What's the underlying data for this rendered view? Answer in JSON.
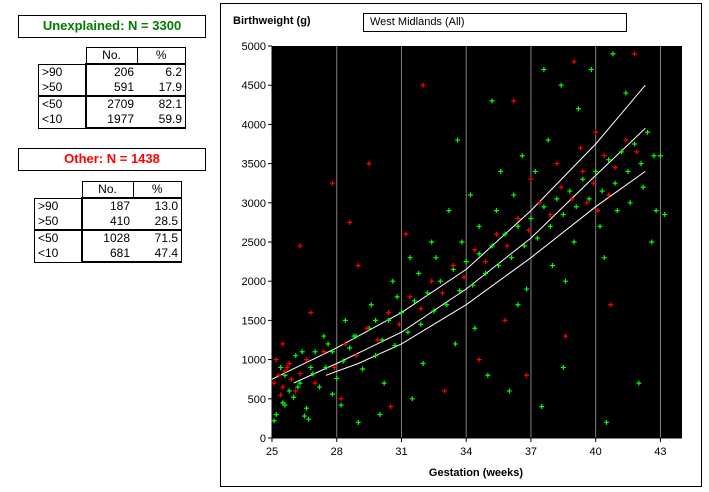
{
  "unexplained": {
    "title": "Unexplained: N = 3300",
    "color": "#007a00",
    "headers": [
      "No.",
      "%"
    ],
    "rows": [
      {
        "label": ">90",
        "no": "206",
        "pct": "6.2"
      },
      {
        "label": ">50",
        "no": "591",
        "pct": "17.9"
      },
      {
        "label": "<50",
        "no": "2709",
        "pct": "82.1"
      },
      {
        "label": "<10",
        "no": "1977",
        "pct": "59.9"
      }
    ]
  },
  "other": {
    "title": "Other: N = 1438",
    "color": "#ff0000",
    "headers": [
      "No.",
      "%"
    ],
    "rows": [
      {
        "label": ">90",
        "no": "187",
        "pct": "13.0"
      },
      {
        "label": ">50",
        "no": "410",
        "pct": "28.5"
      },
      {
        "label": "<50",
        "no": "1028",
        "pct": "71.5"
      },
      {
        "label": "<10",
        "no": "681",
        "pct": "47.4"
      }
    ]
  },
  "region_selector": {
    "value": "West Midlands (All)"
  },
  "chart_data": {
    "type": "scatter",
    "ylabel": "Birthweight (g)",
    "xlabel": "Gestation (weeks)",
    "xlim": [
      25,
      44
    ],
    "ylim": [
      0,
      5000
    ],
    "x_ticks": [
      25,
      28,
      31,
      34,
      37,
      40,
      43
    ],
    "y_ticks": [
      0,
      500,
      1000,
      1500,
      2000,
      2500,
      3000,
      3500,
      4000,
      4500,
      5000
    ],
    "grid": "vertical",
    "background": "#000000",
    "series": [
      {
        "name": "Unexplained",
        "color": "#00ff00",
        "marker": "+",
        "points": [
          [
            25.2,
            300
          ],
          [
            25.5,
            450
          ],
          [
            25.8,
            600
          ],
          [
            26.0,
            520
          ],
          [
            26.3,
            700
          ],
          [
            26.6,
            380
          ],
          [
            26.9,
            820
          ],
          [
            27.2,
            650
          ],
          [
            27.5,
            900
          ],
          [
            27.8,
            560
          ],
          [
            25.4,
            900
          ],
          [
            26.1,
            1050
          ],
          [
            26.7,
            240
          ],
          [
            27.0,
            1100
          ],
          [
            27.6,
            1200
          ],
          [
            28.0,
            760
          ],
          [
            28.3,
            980
          ],
          [
            28.6,
            1150
          ],
          [
            28.9,
            1300
          ],
          [
            29.2,
            880
          ],
          [
            29.5,
            1400
          ],
          [
            29.8,
            1050
          ],
          [
            30.1,
            1250
          ],
          [
            30.4,
            1500
          ],
          [
            30.7,
            1180
          ],
          [
            31.0,
            1600
          ],
          [
            31.3,
            1350
          ],
          [
            31.6,
            1750
          ],
          [
            31.9,
            1450
          ],
          [
            32.2,
            1850
          ],
          [
            32.5,
            1620
          ],
          [
            32.8,
            2000
          ],
          [
            33.1,
            1700
          ],
          [
            33.4,
            2150
          ],
          [
            33.7,
            1880
          ],
          [
            34.0,
            2250
          ],
          [
            34.3,
            1950
          ],
          [
            34.6,
            2350
          ],
          [
            34.9,
            2100
          ],
          [
            35.2,
            2450
          ],
          [
            35.5,
            2200
          ],
          [
            35.8,
            2600
          ],
          [
            36.1,
            2300
          ],
          [
            36.4,
            2700
          ],
          [
            36.7,
            2450
          ],
          [
            37.0,
            2800
          ],
          [
            37.3,
            2550
          ],
          [
            37.6,
            2950
          ],
          [
            37.9,
            2700
          ],
          [
            38.2,
            3050
          ],
          [
            38.5,
            2850
          ],
          [
            38.8,
            3150
          ],
          [
            39.1,
            2950
          ],
          [
            39.4,
            3300
          ],
          [
            39.7,
            3050
          ],
          [
            40.0,
            3400
          ],
          [
            40.3,
            3150
          ],
          [
            40.6,
            3550
          ],
          [
            40.9,
            3250
          ],
          [
            41.2,
            3650
          ],
          [
            41.5,
            3400
          ],
          [
            41.8,
            3750
          ],
          [
            42.1,
            3500
          ],
          [
            42.4,
            3900
          ],
          [
            42.7,
            3600
          ],
          [
            39.2,
            4200
          ],
          [
            38.4,
            4500
          ],
          [
            37.8,
            3800
          ],
          [
            36.6,
            3600
          ],
          [
            35.6,
            3400
          ],
          [
            34.2,
            3100
          ],
          [
            33.2,
            2900
          ],
          [
            32.4,
            2500
          ],
          [
            31.4,
            2300
          ],
          [
            30.6,
            2000
          ],
          [
            29.6,
            1700
          ],
          [
            28.4,
            1500
          ],
          [
            27.4,
            1300
          ],
          [
            26.4,
            1100
          ],
          [
            25.6,
            800
          ],
          [
            35.0,
            800
          ],
          [
            36.0,
            600
          ],
          [
            37.5,
            400
          ],
          [
            38.5,
            900
          ],
          [
            40.5,
            200
          ],
          [
            42.0,
            700
          ],
          [
            31.5,
            500
          ],
          [
            30.0,
            300
          ],
          [
            29.0,
            200
          ],
          [
            33.5,
            1200
          ],
          [
            36.8,
            1900
          ],
          [
            38.0,
            2200
          ],
          [
            39.0,
            2500
          ],
          [
            40.2,
            2700
          ],
          [
            41.0,
            2900
          ],
          [
            41.6,
            3000
          ],
          [
            42.2,
            3200
          ],
          [
            42.8,
            2900
          ],
          [
            39.8,
            4700
          ],
          [
            41.4,
            4400
          ],
          [
            37.2,
            3400
          ],
          [
            36.2,
            3100
          ],
          [
            35.4,
            2900
          ],
          [
            34.6,
            2700
          ],
          [
            33.8,
            2500
          ],
          [
            32.6,
            2300
          ],
          [
            31.8,
            2100
          ],
          [
            30.8,
            1800
          ],
          [
            29.8,
            1500
          ],
          [
            28.8,
            1300
          ],
          [
            27.8,
            1100
          ],
          [
            26.8,
            900
          ],
          [
            26.2,
            650
          ],
          [
            25.6,
            420
          ],
          [
            25.1,
            220
          ],
          [
            26.5,
            280
          ],
          [
            28.2,
            420
          ],
          [
            30.2,
            700
          ],
          [
            32.0,
            950
          ],
          [
            34.4,
            1400
          ],
          [
            36.4,
            1700
          ],
          [
            38.6,
            2000
          ],
          [
            40.4,
            2300
          ],
          [
            42.6,
            2500
          ],
          [
            43.2,
            2850
          ],
          [
            43.0,
            3600
          ],
          [
            40.8,
            4900
          ],
          [
            37.6,
            4700
          ],
          [
            35.2,
            4300
          ],
          [
            33.6,
            3800
          ]
        ]
      },
      {
        "name": "Other",
        "color": "#ff0000",
        "marker": "+",
        "points": [
          [
            25.1,
            700
          ],
          [
            25.3,
            800
          ],
          [
            25.5,
            650
          ],
          [
            25.7,
            900
          ],
          [
            25.9,
            750
          ],
          [
            26.1,
            600
          ],
          [
            25.2,
            1000
          ],
          [
            25.4,
            550
          ],
          [
            25.6,
            850
          ],
          [
            25.8,
            950
          ],
          [
            26.3,
            820
          ],
          [
            26.6,
            1000
          ],
          [
            27.0,
            700
          ],
          [
            27.4,
            1100
          ],
          [
            27.9,
            900
          ],
          [
            28.4,
            1200
          ],
          [
            28.9,
            1050
          ],
          [
            29.4,
            1400
          ],
          [
            29.9,
            1250
          ],
          [
            30.4,
            1600
          ],
          [
            30.9,
            1450
          ],
          [
            31.4,
            1800
          ],
          [
            31.9,
            1650
          ],
          [
            32.4,
            2000
          ],
          [
            32.9,
            1850
          ],
          [
            33.4,
            2200
          ],
          [
            33.9,
            2050
          ],
          [
            34.4,
            2400
          ],
          [
            34.9,
            2250
          ],
          [
            35.4,
            2600
          ],
          [
            35.9,
            2450
          ],
          [
            36.4,
            2800
          ],
          [
            36.9,
            2650
          ],
          [
            37.4,
            3000
          ],
          [
            37.9,
            2850
          ],
          [
            38.4,
            3200
          ],
          [
            38.9,
            3050
          ],
          [
            39.4,
            3400
          ],
          [
            39.9,
            3250
          ],
          [
            40.4,
            3600
          ],
          [
            40.9,
            3450
          ],
          [
            41.4,
            3800
          ],
          [
            41.9,
            3650
          ],
          [
            39.6,
            3000
          ],
          [
            40.1,
            2900
          ],
          [
            40.6,
            3100
          ],
          [
            39.3,
            3700
          ],
          [
            40.0,
            3900
          ],
          [
            38.2,
            3500
          ],
          [
            37.0,
            3300
          ],
          [
            27.8,
            3250
          ],
          [
            29.5,
            3500
          ],
          [
            32.0,
            4500
          ],
          [
            26.3,
            2450
          ],
          [
            28.6,
            2750
          ],
          [
            36.2,
            4300
          ],
          [
            41.8,
            4900
          ],
          [
            39.0,
            4800
          ],
          [
            34.6,
            1000
          ],
          [
            36.8,
            800
          ],
          [
            38.6,
            1300
          ],
          [
            40.7,
            1700
          ],
          [
            33.0,
            600
          ],
          [
            30.5,
            400
          ],
          [
            35.8,
            1500
          ],
          [
            31.2,
            2600
          ],
          [
            29.0,
            2200
          ],
          [
            26.8,
            1600
          ],
          [
            25.5,
            1200
          ],
          [
            28.2,
            500
          ]
        ]
      }
    ],
    "reference_curves": {
      "color": "#ffffff",
      "curves": [
        {
          "points": [
            [
              25,
              750
            ],
            [
              28,
              1150
            ],
            [
              31,
              1600
            ],
            [
              34,
              2150
            ],
            [
              37,
              2900
            ],
            [
              40,
              3750
            ],
            [
              42.3,
              4500
            ]
          ]
        },
        {
          "points": [
            [
              26,
              700
            ],
            [
              28,
              950
            ],
            [
              31,
              1350
            ],
            [
              34,
              1900
            ],
            [
              37,
              2550
            ],
            [
              40,
              3350
            ],
            [
              42.3,
              3950
            ]
          ]
        },
        {
          "points": [
            [
              27.5,
              800
            ],
            [
              29,
              950
            ],
            [
              31,
              1200
            ],
            [
              34,
              1700
            ],
            [
              37,
              2300
            ],
            [
              40,
              2950
            ],
            [
              42.3,
              3400
            ]
          ]
        }
      ]
    }
  }
}
